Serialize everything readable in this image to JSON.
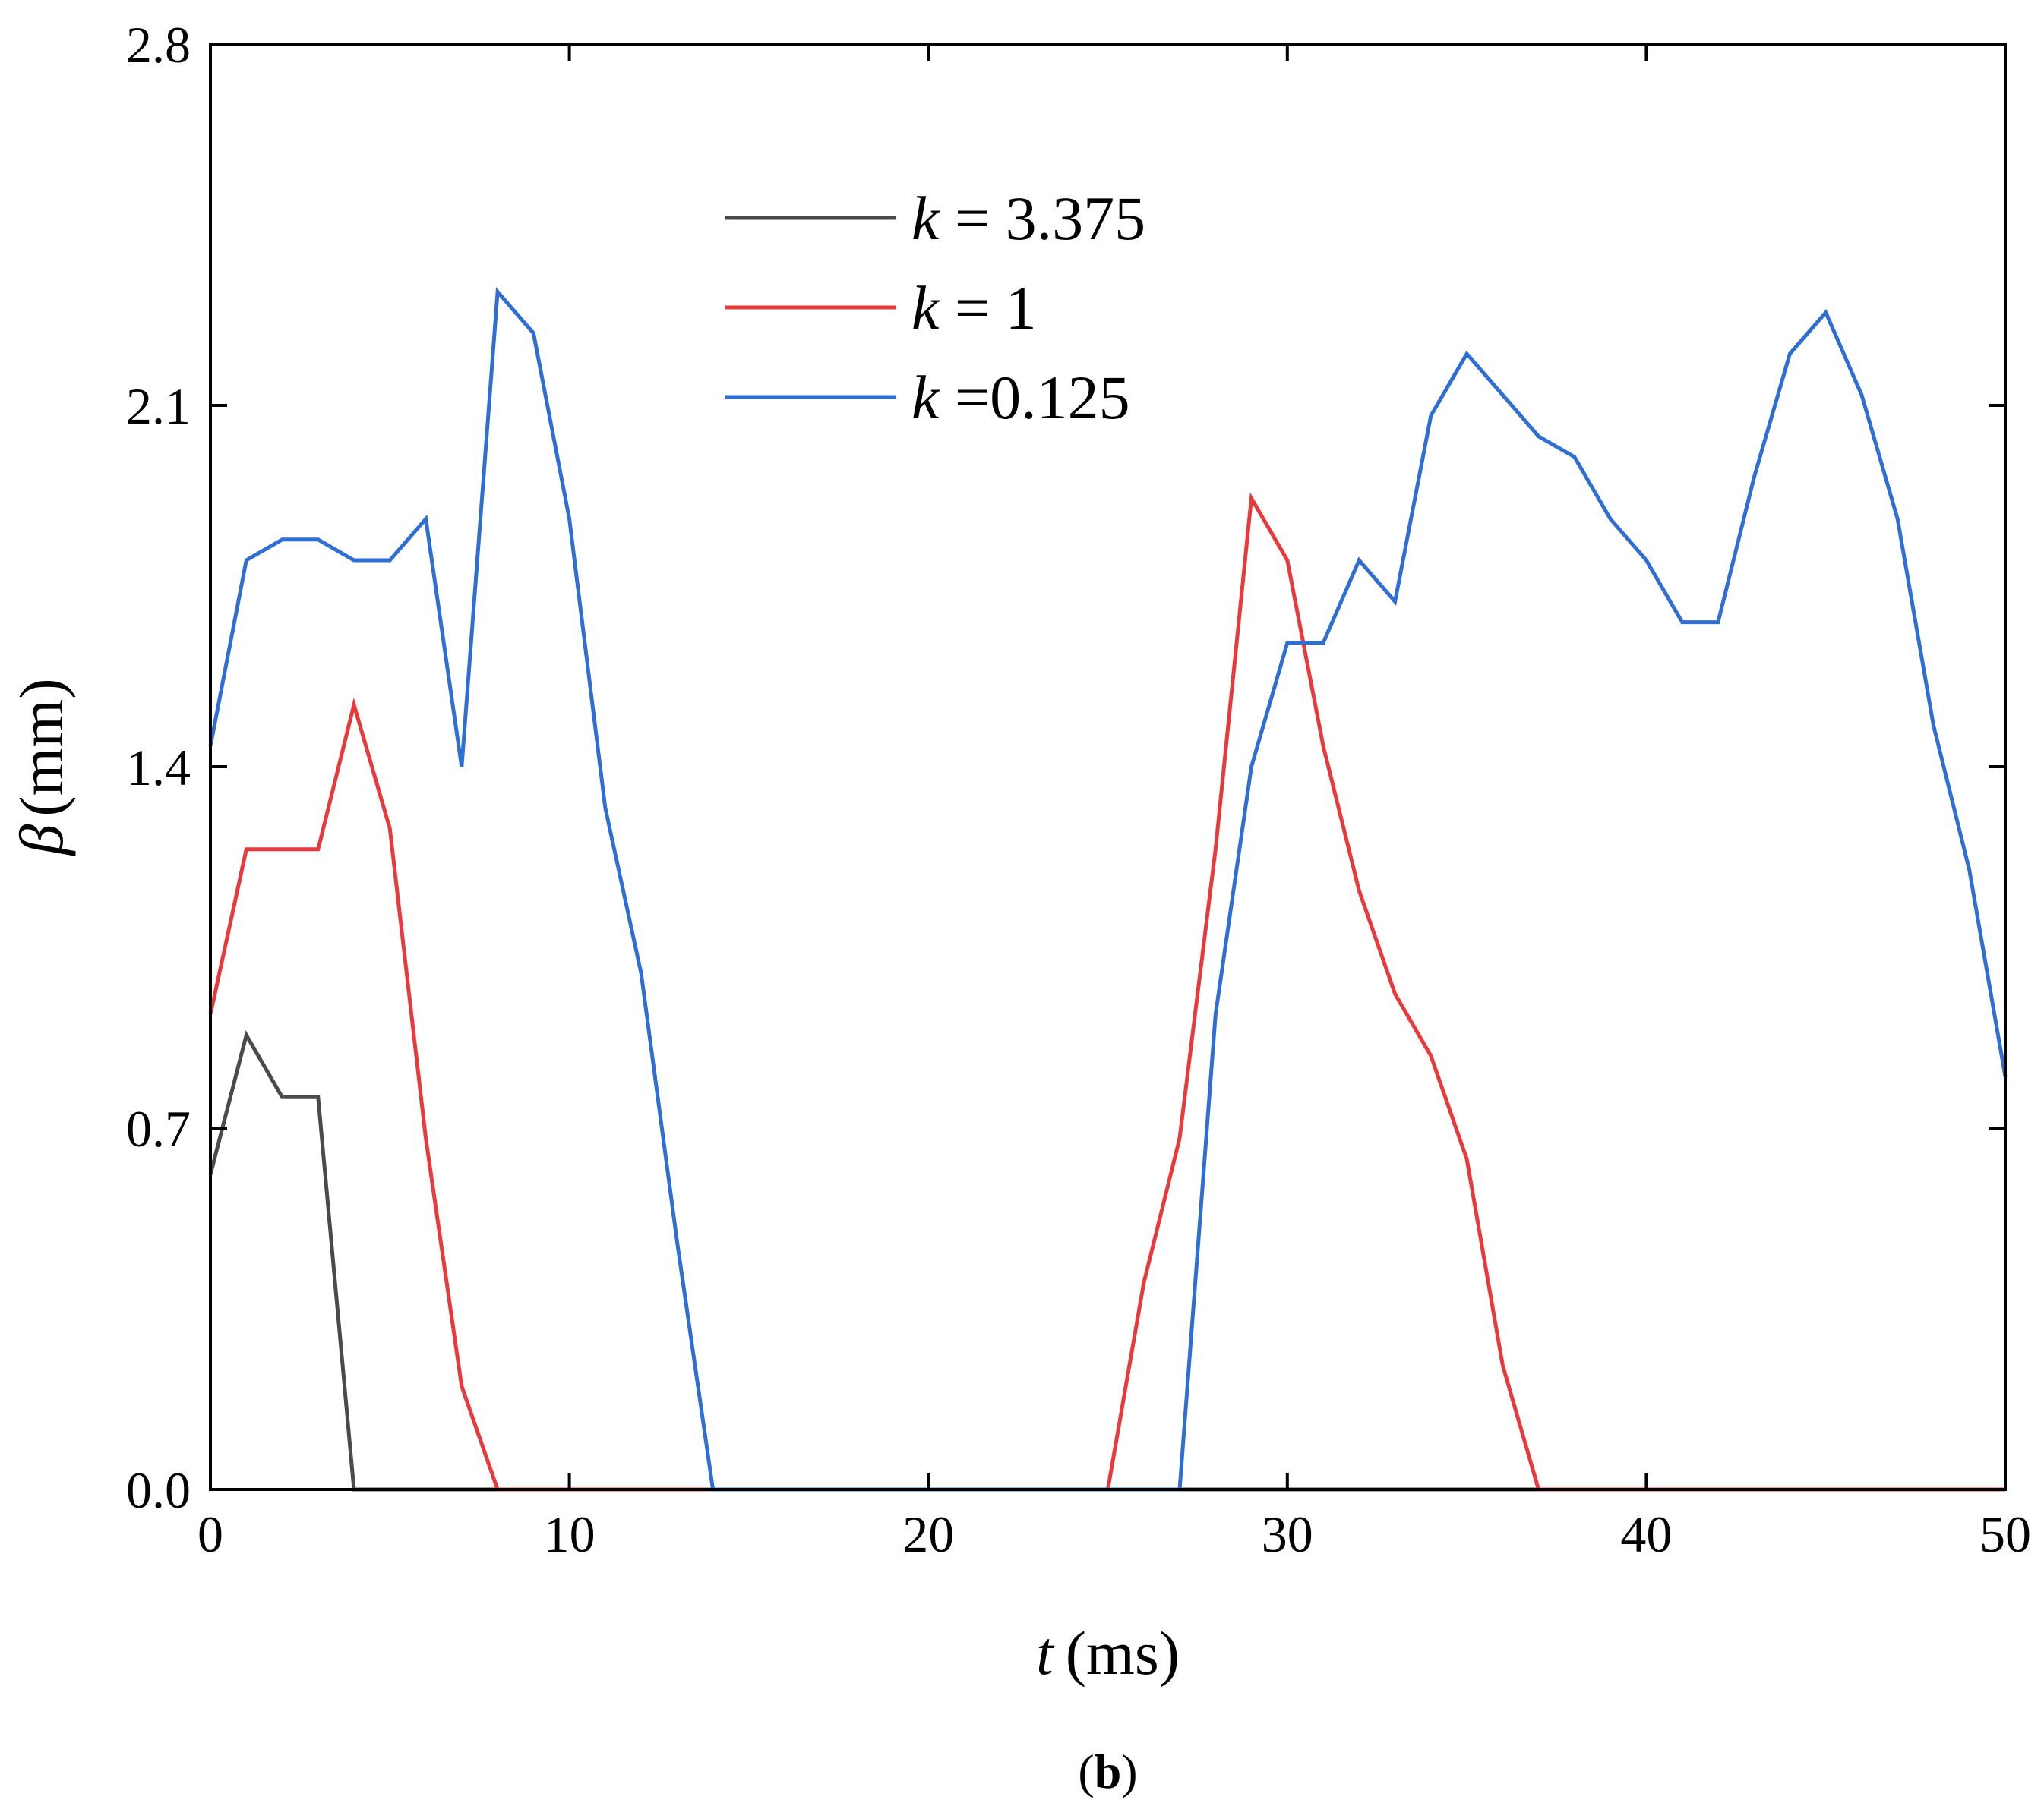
{
  "chart_data": {
    "type": "line",
    "panel_label_parts": [
      "(",
      "b",
      ")"
    ],
    "xlabel_symbol": "t",
    "xlabel_unit": "(ms)",
    "ylabel_symbol": "β",
    "ylabel_unit": "(mm)",
    "xlim": [
      0,
      50
    ],
    "ylim": [
      0,
      2.8
    ],
    "x_ticks": [
      0,
      10,
      20,
      30,
      40,
      50
    ],
    "x_tick_labels": [
      "0",
      "10",
      "20",
      "30",
      "40",
      "50"
    ],
    "y_ticks": [
      0,
      0.7,
      1.4,
      2.1,
      2.8
    ],
    "y_tick_labels": [
      "0.0",
      "0.7",
      "1.4",
      "2.1",
      "2.8"
    ],
    "legend_placement": "top-center",
    "series": [
      {
        "name": "k = 3.375",
        "legend_symbol": "k",
        "legend_rest": " = 3.375",
        "color": "#4a4a4a",
        "points": [
          [
            0,
            0.61
          ],
          [
            1,
            0.88
          ],
          [
            2,
            0.76
          ],
          [
            3,
            0.76
          ],
          [
            4,
            0.0
          ],
          [
            50,
            0.0
          ]
        ]
      },
      {
        "name": "k = 1",
        "legend_symbol": "k",
        "legend_rest": " = 1",
        "color": "#e8393c",
        "points": [
          [
            0,
            0.92
          ],
          [
            1,
            1.24
          ],
          [
            2,
            1.24
          ],
          [
            3,
            1.24
          ],
          [
            4,
            1.52
          ],
          [
            5,
            1.28
          ],
          [
            6,
            0.68
          ],
          [
            7,
            0.2
          ],
          [
            8,
            0.0
          ],
          [
            25,
            0.0
          ],
          [
            26,
            0.4
          ],
          [
            27,
            0.68
          ],
          [
            28,
            1.24
          ],
          [
            29,
            1.92
          ],
          [
            30,
            1.8
          ],
          [
            31,
            1.44
          ],
          [
            32,
            1.16
          ],
          [
            33,
            0.96
          ],
          [
            34,
            0.84
          ],
          [
            35,
            0.64
          ],
          [
            36,
            0.24
          ],
          [
            37,
            0.0
          ],
          [
            50,
            0.0
          ]
        ]
      },
      {
        "name": "k =0.125",
        "legend_symbol": "k",
        "legend_rest": " =0.125",
        "color": "#2f6fd4",
        "points": [
          [
            0,
            1.44
          ],
          [
            1,
            1.8
          ],
          [
            2,
            1.84
          ],
          [
            3,
            1.84
          ],
          [
            4,
            1.8
          ],
          [
            5,
            1.8
          ],
          [
            6,
            1.88
          ],
          [
            7,
            1.4
          ],
          [
            8,
            2.32
          ],
          [
            9,
            2.24
          ],
          [
            10,
            1.88
          ],
          [
            11,
            1.32
          ],
          [
            12,
            1.0
          ],
          [
            13,
            0.48
          ],
          [
            14,
            0.0
          ],
          [
            27,
            0.0
          ],
          [
            28,
            0.92
          ],
          [
            29,
            1.4
          ],
          [
            30,
            1.64
          ],
          [
            31,
            1.64
          ],
          [
            32,
            1.8
          ],
          [
            33,
            1.72
          ],
          [
            34,
            2.08
          ],
          [
            35,
            2.2
          ],
          [
            36,
            2.12
          ],
          [
            37,
            2.04
          ],
          [
            38,
            2.0
          ],
          [
            39,
            1.88
          ],
          [
            40,
            1.8
          ],
          [
            41,
            1.68
          ],
          [
            42,
            1.68
          ],
          [
            43,
            1.96
          ],
          [
            44,
            2.2
          ],
          [
            45,
            2.28
          ],
          [
            46,
            2.12
          ],
          [
            47,
            1.88
          ],
          [
            48,
            1.48
          ],
          [
            49,
            1.2
          ],
          [
            50,
            0.8
          ]
        ]
      }
    ]
  }
}
